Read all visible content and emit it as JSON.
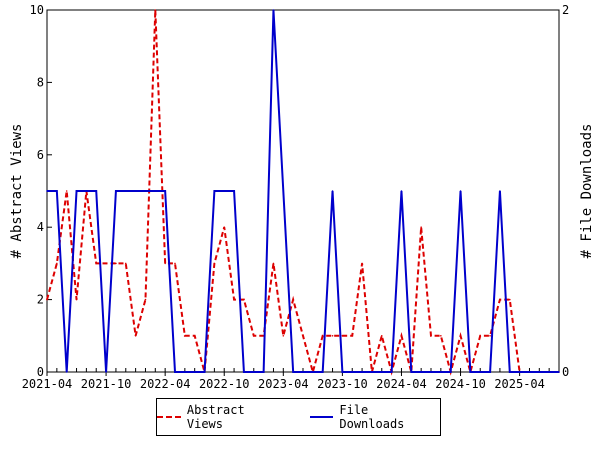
{
  "chart_data": {
    "type": "line",
    "title": "",
    "xlabel": "",
    "ylabel": "# Abstract Views",
    "y2label": "# File Downloads",
    "ylim": [
      0,
      10
    ],
    "y2lim": [
      0,
      2
    ],
    "yticks": [
      "0",
      "2",
      "4",
      "6",
      "8",
      "10"
    ],
    "y2ticks": [
      "0",
      "2"
    ],
    "xticks": [
      "2021-04",
      "2021-10",
      "2022-04",
      "2022-10",
      "2023-04",
      "2023-10",
      "2024-04",
      "2024-10",
      "2025-04"
    ],
    "x": [
      "2021-04",
      "2021-05",
      "2021-06",
      "2021-07",
      "2021-08",
      "2021-09",
      "2021-10",
      "2021-11",
      "2021-12",
      "2022-01",
      "2022-02",
      "2022-03",
      "2022-04",
      "2022-05",
      "2022-06",
      "2022-07",
      "2022-08",
      "2022-09",
      "2022-10",
      "2022-11",
      "2022-12",
      "2023-01",
      "2023-02",
      "2023-03",
      "2023-04",
      "2023-05",
      "2023-06",
      "2023-07",
      "2023-08",
      "2023-09",
      "2023-10",
      "2023-11",
      "2023-12",
      "2024-01",
      "2024-02",
      "2024-03",
      "2024-04",
      "2024-05",
      "2024-06",
      "2024-07",
      "2024-08",
      "2024-09",
      "2024-10",
      "2024-11",
      "2024-12",
      "2025-01",
      "2025-02",
      "2025-03",
      "2025-04",
      "2025-05",
      "2025-06",
      "2025-07",
      "2025-08"
    ],
    "series": [
      {
        "name": "Abstract Views",
        "axis": "left",
        "color": "#dd0000",
        "style": "dashed",
        "values": [
          2,
          3,
          5,
          2,
          5,
          3,
          3,
          3,
          3,
          1,
          2,
          10,
          3,
          3,
          1,
          1,
          0,
          3,
          4,
          2,
          2,
          1,
          1,
          3,
          1,
          2,
          1,
          0,
          1,
          1,
          1,
          1,
          3,
          0,
          1,
          0,
          1,
          0,
          4,
          1,
          1,
          0,
          1,
          0,
          1,
          1,
          2,
          2,
          0,
          0,
          0,
          0,
          0
        ]
      },
      {
        "name": "File Downloads",
        "axis": "right",
        "color": "#0000cc",
        "style": "solid",
        "values": [
          1,
          1,
          0,
          1,
          1,
          1,
          0,
          1,
          1,
          1,
          1,
          1,
          1,
          0,
          0,
          0,
          0,
          1,
          1,
          1,
          0,
          0,
          0,
          2,
          1,
          0,
          0,
          0,
          0,
          1,
          0,
          0,
          0,
          0,
          0,
          0,
          1,
          0,
          0,
          0,
          0,
          0,
          1,
          0,
          0,
          0,
          1,
          0,
          0,
          0,
          0,
          0,
          0
        ]
      }
    ],
    "legend": "bottom-center",
    "grid": false
  }
}
